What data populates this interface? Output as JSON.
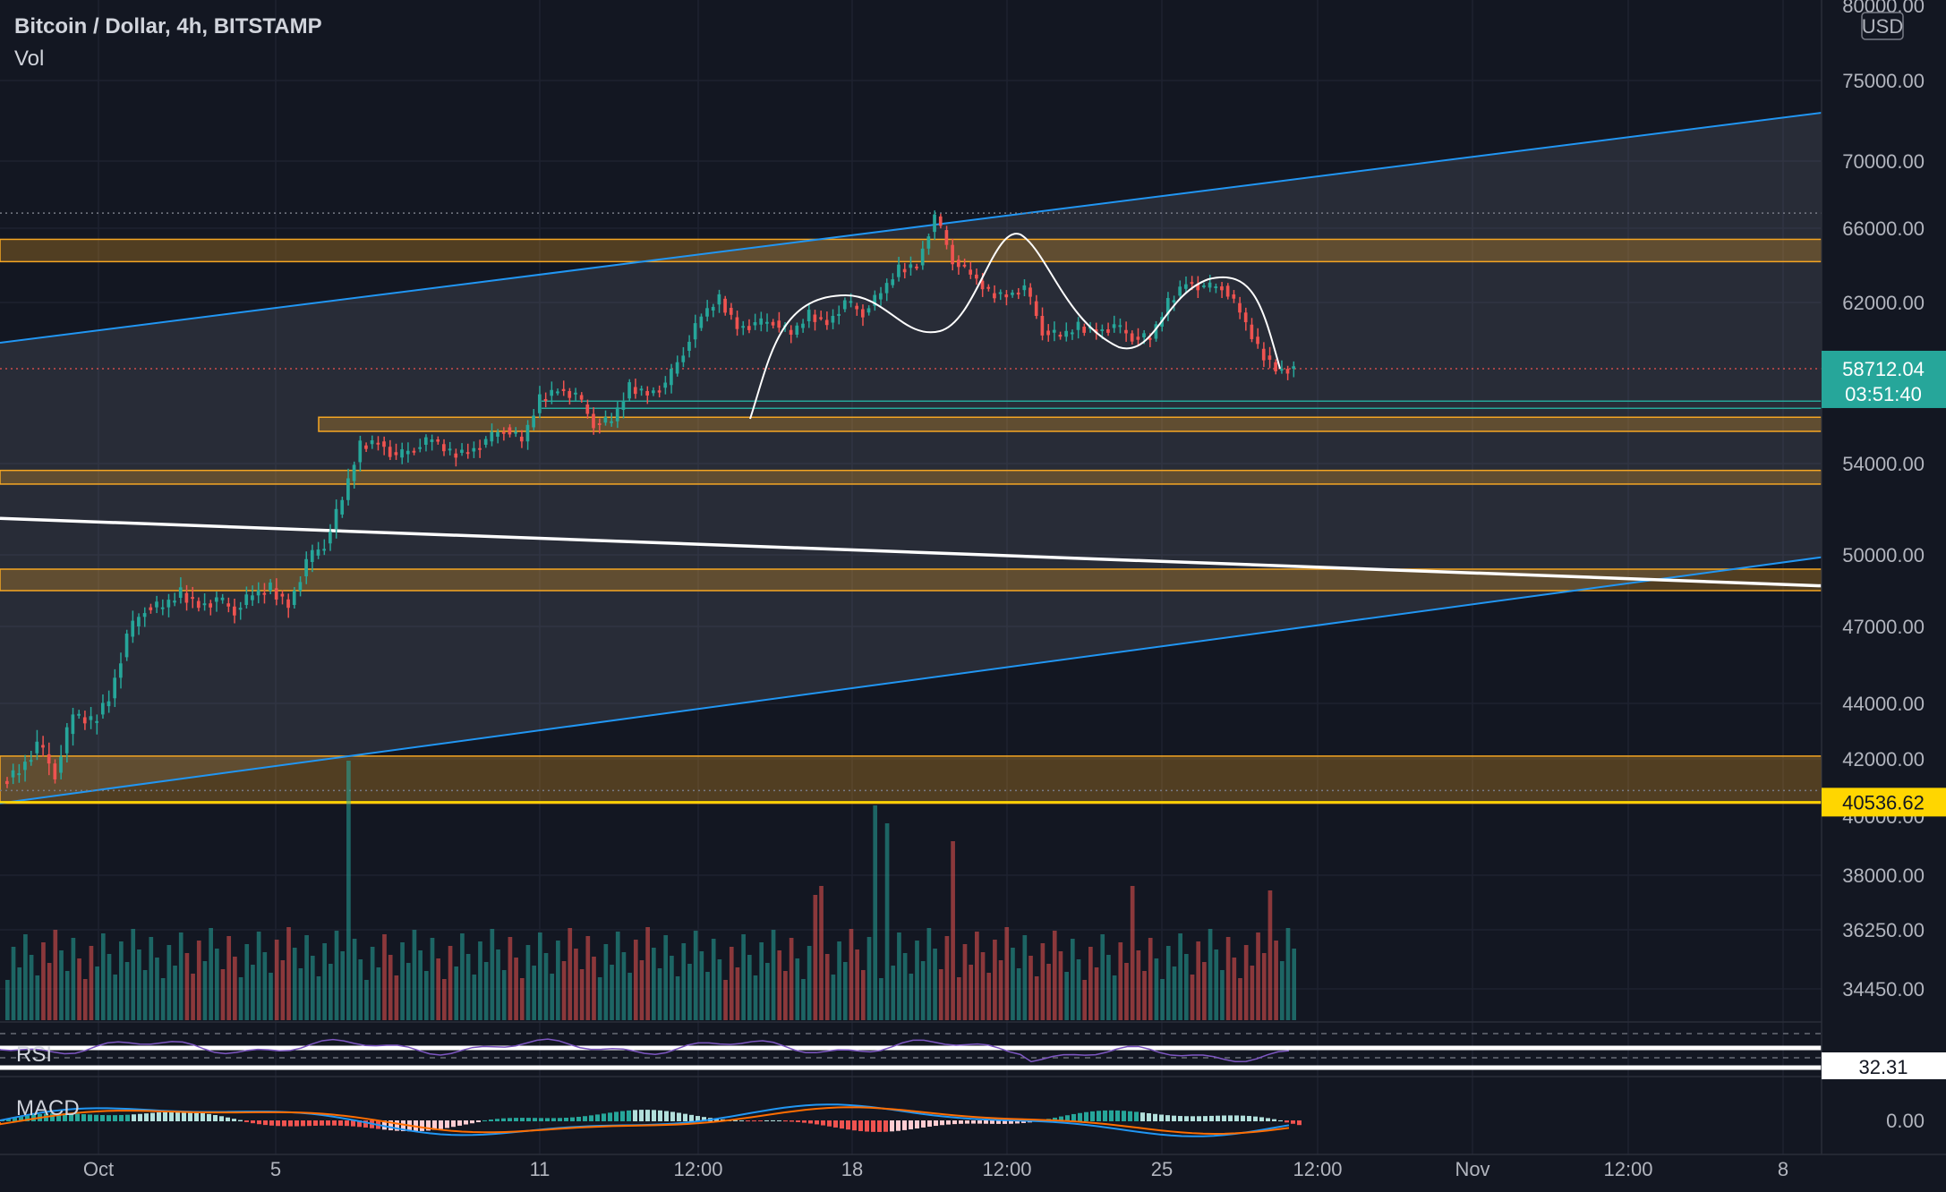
{
  "header": {
    "title": "Bitcoin / Dollar, 4h, BITSTAMP",
    "vol_label": "Vol",
    "currency": "USD"
  },
  "indicators": {
    "rsi_label": "RSI",
    "rsi_value": "32.31",
    "macd_label": "MACD",
    "macd_zero": "0.00"
  },
  "price_tag": {
    "value": "58712.04",
    "countdown": "03:51:40"
  },
  "level_tag": {
    "value": "40536.62"
  },
  "colors": {
    "bg": "#131722",
    "up": "#26a69a",
    "down": "#ef5350",
    "zone": "#f5a623",
    "channel": "#2196f3",
    "price": "#26a69a",
    "level": "#ffd600"
  },
  "chart_data": {
    "type": "candlestick",
    "title": "Bitcoin / Dollar, 4h, BITSTAMP",
    "y_axis_ticks": [
      "80000.00",
      "75000.00",
      "70000.00",
      "66000.00",
      "62000.00",
      "54000.00",
      "50000.00",
      "47000.00",
      "44000.00",
      "42000.00",
      "40000.00",
      "38000.00",
      "36250.00",
      "34450.00"
    ],
    "x_axis_ticks": [
      "Oct",
      "5",
      "11",
      "12:00",
      "18",
      "12:00",
      "25",
      "12:00",
      "Nov",
      "12:00",
      "8"
    ],
    "price_path": [
      41200,
      41600,
      42500,
      41500,
      43600,
      43300,
      44200,
      46600,
      47800,
      47800,
      48400,
      47900,
      48100,
      47700,
      48300,
      48600,
      47900,
      49700,
      50500,
      52400,
      54900,
      55100,
      54300,
      54800,
      55200,
      54500,
      54600,
      55100,
      55800,
      55100,
      57200,
      57700,
      57400,
      56000,
      56100,
      57800,
      57500,
      57900,
      59600,
      61300,
      62200,
      60800,
      60900,
      61100,
      60400,
      61400,
      61000,
      62000,
      61500,
      62500,
      63800,
      64000,
      66700,
      64300,
      63500,
      62500,
      62400,
      62800,
      60600,
      60300,
      60800,
      60600,
      60800,
      60300,
      60200,
      62000,
      63100,
      62800,
      62900,
      61500,
      59700,
      58700,
      58712
    ],
    "annotations": {
      "resistance_zones": [
        [
          64200,
          65400
        ],
        [
          55600,
          56300
        ],
        [
          53100,
          53700
        ],
        [
          48500,
          49400
        ],
        [
          40400,
          42100
        ]
      ],
      "ascending_channel": {
        "upper": [
          60000,
          73000
        ],
        "lower": [
          40400,
          49900
        ]
      },
      "descending_line": [
        51600,
        48700
      ],
      "support_line": 57100,
      "dotted_high": 66900
    }
  }
}
